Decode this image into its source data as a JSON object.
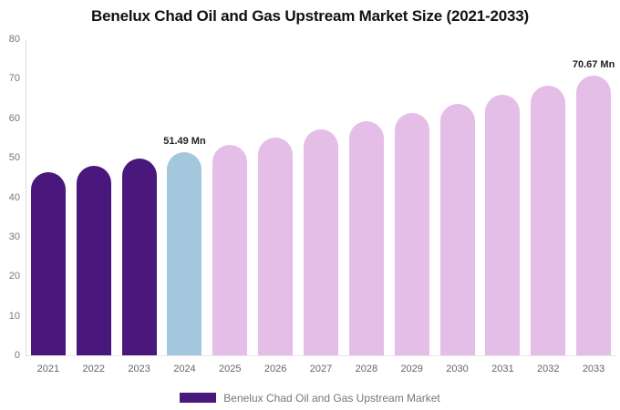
{
  "title": "Benelux Chad Oil and Gas Upstream Market Size (2021-2033)",
  "legend": {
    "label": "Benelux Chad Oil and Gas Upstream Market",
    "swatch_color": "#4A177D"
  },
  "colors": {
    "historical_bar": "#4A177D",
    "base_year_bar": "#A3C8DE",
    "forecast_bar": "#E5BEE8",
    "axis_line": "#DDDDDD",
    "baseline": "#E8E8E8",
    "y_tick_label": "#777777",
    "x_tick_label": "#666666",
    "annotation_text": "#222222",
    "title_text": "#111111"
  },
  "chart_data": {
    "type": "bar",
    "title": "Benelux Chad Oil and Gas Upstream Market Size (2021-2033)",
    "categories": [
      "2021",
      "2022",
      "2023",
      "2024",
      "2025",
      "2026",
      "2027",
      "2028",
      "2029",
      "2030",
      "2031",
      "2032",
      "2033"
    ],
    "values": [
      46.3,
      48.0,
      49.7,
      51.49,
      53.3,
      55.2,
      57.2,
      59.3,
      61.4,
      63.6,
      65.9,
      68.2,
      70.67
    ],
    "unit": "Mn",
    "xlabel": "",
    "ylabel": "",
    "ylim": [
      0,
      80
    ],
    "yticks": [
      0,
      10,
      20,
      30,
      40,
      50,
      60,
      70,
      80
    ],
    "grid": false,
    "legend_position": "bottom",
    "series_name": "Benelux Chad Oil and Gas Upstream Market",
    "segments": {
      "historical": [
        0,
        2
      ],
      "base_year": [
        3,
        3
      ],
      "forecast": [
        4,
        12
      ]
    },
    "annotations": [
      {
        "index": 3,
        "text": "51.49 Mn"
      },
      {
        "index": 12,
        "text": "70.67 Mn"
      }
    ]
  }
}
